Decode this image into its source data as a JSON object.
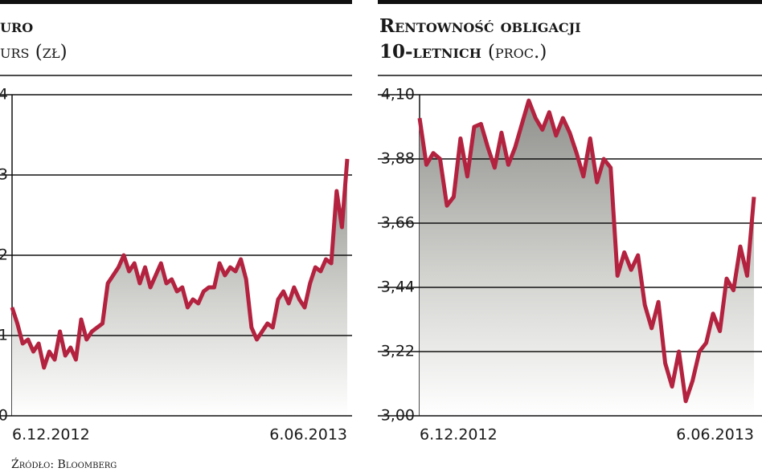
{
  "chart_data": [
    {
      "type": "line",
      "title": "uro",
      "subtitle": "urs (zł)",
      "categories": [
        "6.12.2012",
        null,
        null,
        null,
        null,
        null,
        null,
        null,
        null,
        null,
        null,
        null,
        null,
        null,
        null,
        null,
        null,
        null,
        null,
        null,
        null,
        null,
        null,
        null,
        null,
        null,
        null,
        null,
        null,
        null,
        null,
        null,
        null,
        null,
        null,
        null,
        null,
        null,
        null,
        null,
        null,
        null,
        null,
        null,
        null,
        null,
        null,
        null,
        null,
        null,
        null,
        null,
        null,
        null,
        null,
        null,
        null,
        null,
        null,
        null,
        null,
        null,
        null,
        "6.06.2013"
      ],
      "values": [
        1.35,
        1.15,
        0.9,
        0.95,
        0.8,
        0.9,
        0.6,
        0.8,
        0.7,
        1.05,
        0.75,
        0.85,
        0.7,
        1.2,
        0.95,
        1.05,
        1.1,
        1.15,
        1.65,
        1.75,
        1.85,
        2.0,
        1.8,
        1.9,
        1.65,
        1.85,
        1.6,
        1.75,
        1.9,
        1.65,
        1.7,
        1.55,
        1.6,
        1.35,
        1.45,
        1.4,
        1.55,
        1.6,
        1.6,
        1.9,
        1.75,
        1.85,
        1.8,
        1.95,
        1.7,
        1.1,
        0.95,
        1.05,
        1.15,
        1.1,
        1.45,
        1.55,
        1.4,
        1.6,
        1.45,
        1.35,
        1.65,
        1.85,
        1.8,
        1.95,
        1.9,
        2.8,
        2.35,
        3.2
      ],
      "color": "#b3223f",
      "ylim": [
        0,
        4
      ],
      "yticks": [
        0,
        1,
        2,
        3,
        4
      ],
      "grid": true
    },
    {
      "type": "line",
      "title": "Rentowność obligacji",
      "subtitle": "10-letnich",
      "unit": "(proc.)",
      "categories": [
        "6.12.2012",
        null,
        null,
        null,
        null,
        null,
        null,
        null,
        null,
        null,
        null,
        null,
        null,
        null,
        null,
        null,
        null,
        null,
        null,
        null,
        null,
        null,
        null,
        null,
        null,
        null,
        null,
        null,
        null,
        null,
        null,
        null,
        null,
        null,
        null,
        null,
        null,
        null,
        null,
        null,
        null,
        null,
        null,
        null,
        null,
        null,
        null,
        null,
        null,
        "6.06.2013"
      ],
      "values": [
        4.02,
        3.86,
        3.9,
        3.88,
        3.72,
        3.75,
        3.95,
        3.82,
        3.99,
        4.0,
        3.92,
        3.85,
        3.97,
        3.86,
        3.92,
        4.0,
        4.08,
        4.02,
        3.98,
        4.04,
        3.96,
        4.02,
        3.97,
        3.9,
        3.82,
        3.95,
        3.8,
        3.88,
        3.85,
        3.48,
        3.56,
        3.5,
        3.55,
        3.38,
        3.3,
        3.39,
        3.18,
        3.1,
        3.22,
        3.05,
        3.12,
        3.22,
        3.25,
        3.35,
        3.29,
        3.47,
        3.43,
        3.58,
        3.48,
        3.75
      ],
      "color": "#b3223f",
      "ylim": [
        3.0,
        4.1
      ],
      "yticks": [
        {
          "value": 3.0,
          "label": "3,00"
        },
        {
          "value": 3.22,
          "label": "3,22"
        },
        {
          "value": 3.44,
          "label": "3,44"
        },
        {
          "value": 3.66,
          "label": "3,66"
        },
        {
          "value": 3.88,
          "label": "3,88"
        },
        {
          "value": 4.1,
          "label": "4,10"
        }
      ],
      "grid": true
    }
  ],
  "source": "Źródło: Bloomberg"
}
